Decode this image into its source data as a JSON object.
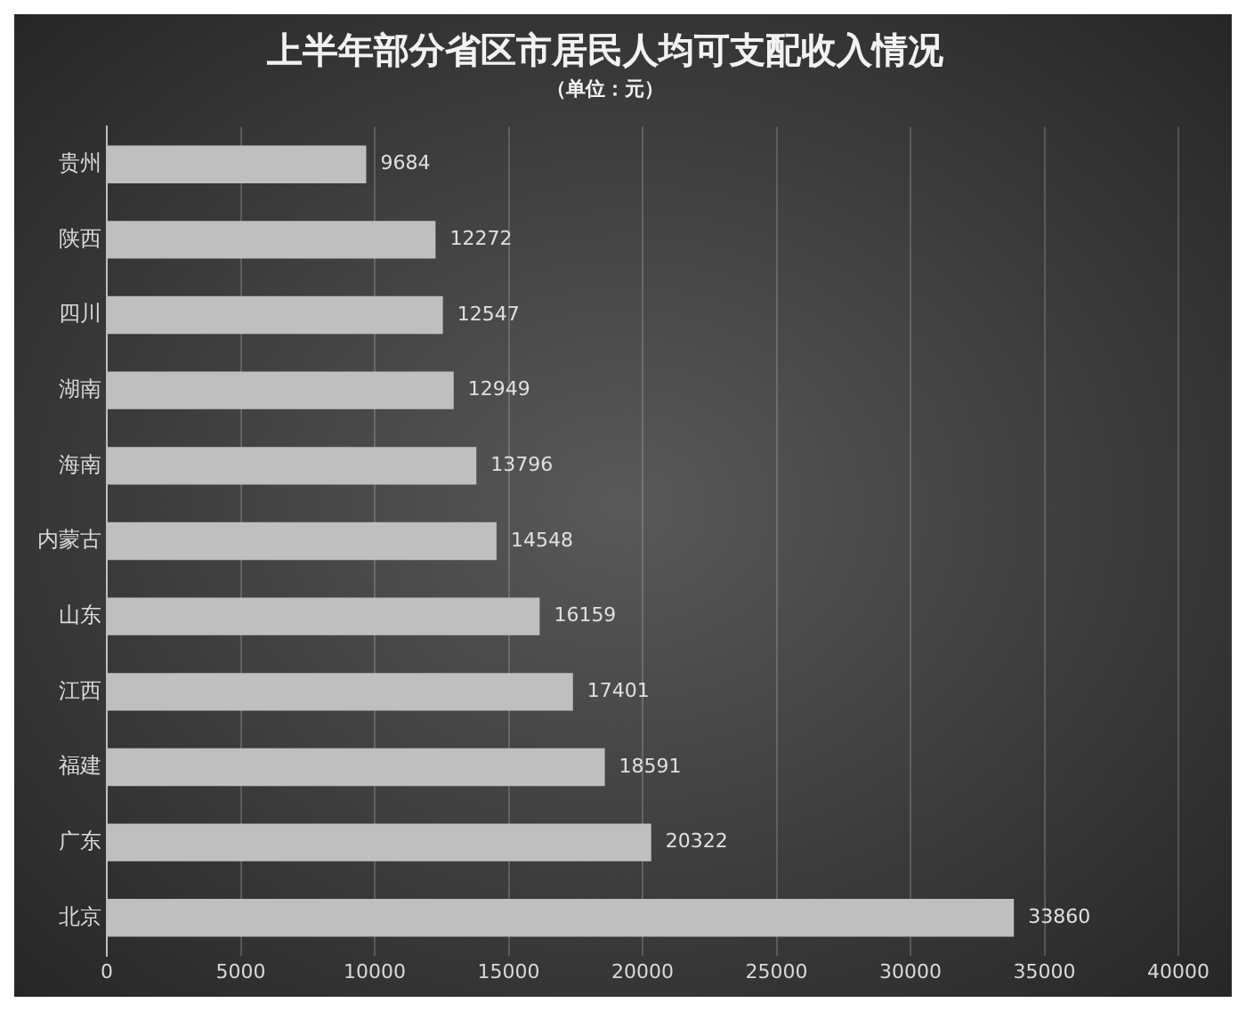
{
  "chart_data": {
    "type": "bar",
    "orientation": "horizontal",
    "title": "上半年部分省区市居民人均可支配收入情况",
    "subtitle": "（单位：元）",
    "categories": [
      "贵州",
      "陕西",
      "四川",
      "湖南",
      "海南",
      "内蒙古",
      "山东",
      "江西",
      "福建",
      "广东",
      "北京"
    ],
    "values": [
      9684,
      12272,
      12547,
      12949,
      13796,
      14548,
      16159,
      17401,
      18591,
      20322,
      33860
    ],
    "color": "#bfbfbf",
    "xlim": [
      0,
      40000
    ],
    "xticks": [
      0,
      5000,
      10000,
      15000,
      20000,
      25000,
      30000,
      35000,
      40000
    ],
    "grid": "x",
    "data_labels": true,
    "legend": false
  }
}
